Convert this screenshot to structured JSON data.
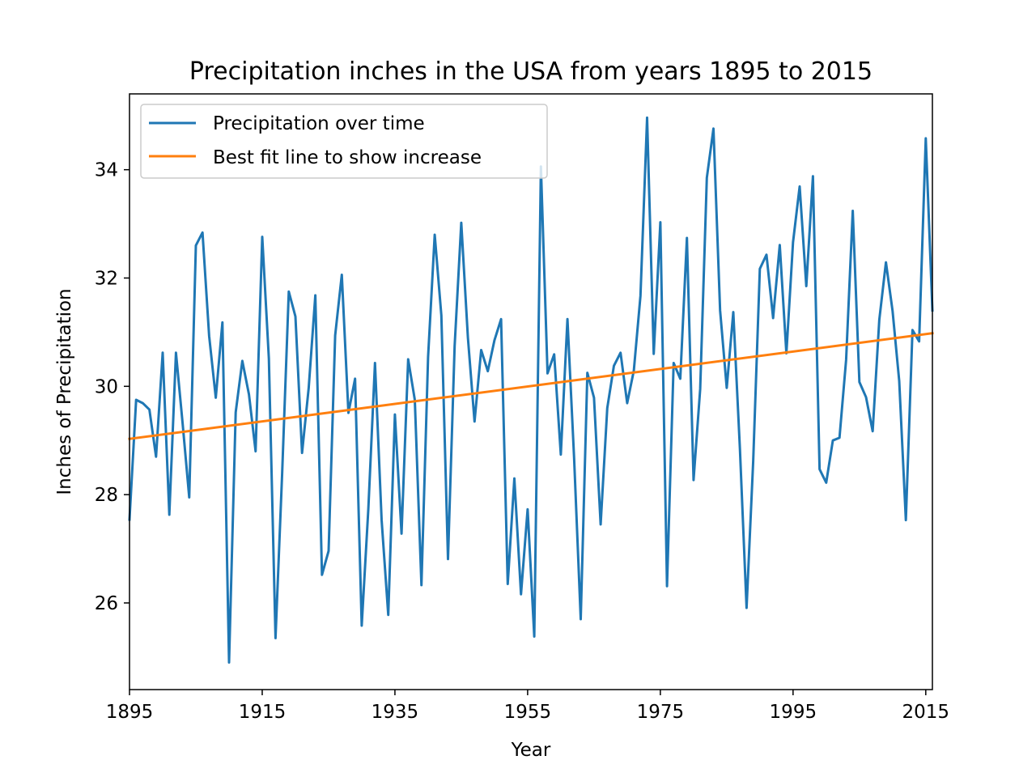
{
  "chart_data": {
    "type": "line",
    "title": "Precipitation inches in the USA from years 1895 to 2015",
    "xlabel": "Year",
    "ylabel": "Inches of Precipitation",
    "xlim": [
      1895,
      2016
    ],
    "ylim": [
      24.4,
      35.4
    ],
    "xticks": [
      "1895",
      "1915",
      "1935",
      "1955",
      "1975",
      "1995",
      "2015"
    ],
    "yticks": [
      "26",
      "28",
      "30",
      "32",
      "34"
    ],
    "grid": false,
    "legend_position": "top-left",
    "series": [
      {
        "name": "Precipitation over time",
        "color": "#1f77b4",
        "x": [
          1895,
          1896,
          1897,
          1898,
          1899,
          1900,
          1901,
          1902,
          1903,
          1904,
          1905,
          1906,
          1907,
          1908,
          1909,
          1910,
          1911,
          1912,
          1913,
          1914,
          1915,
          1916,
          1917,
          1918,
          1919,
          1920,
          1921,
          1922,
          1923,
          1924,
          1925,
          1926,
          1927,
          1928,
          1929,
          1930,
          1931,
          1932,
          1933,
          1934,
          1935,
          1936,
          1937,
          1938,
          1939,
          1940,
          1941,
          1942,
          1943,
          1944,
          1945,
          1946,
          1947,
          1948,
          1949,
          1950,
          1951,
          1952,
          1953,
          1954,
          1955,
          1956,
          1957,
          1958,
          1959,
          1960,
          1961,
          1962,
          1963,
          1964,
          1965,
          1966,
          1967,
          1968,
          1969,
          1970,
          1971,
          1972,
          1973,
          1974,
          1975,
          1976,
          1977,
          1978,
          1979,
          1980,
          1981,
          1982,
          1983,
          1984,
          1985,
          1986,
          1987,
          1988,
          1989,
          1990,
          1991,
          1992,
          1993,
          1994,
          1995,
          1996,
          1997,
          1998,
          1999,
          2000,
          2001,
          2002,
          2003,
          2004,
          2005,
          2006,
          2007,
          2008,
          2009,
          2010,
          2011,
          2012,
          2013,
          2014,
          2015,
          2016
        ],
        "values": [
          27.54,
          29.75,
          29.69,
          29.57,
          28.7,
          30.62,
          27.63,
          30.62,
          29.32,
          27.95,
          32.6,
          32.84,
          30.93,
          29.79,
          31.18,
          24.9,
          29.52,
          30.47,
          29.85,
          28.8,
          32.76,
          30.51,
          25.35,
          28.39,
          31.75,
          31.29,
          28.77,
          29.97,
          31.68,
          26.52,
          26.96,
          30.94,
          32.06,
          29.51,
          30.14,
          25.58,
          27.74,
          30.43,
          27.53,
          25.78,
          29.48,
          27.28,
          30.5,
          29.75,
          26.33,
          30.54,
          32.8,
          31.31,
          26.81,
          30.74,
          33.02,
          30.9,
          29.35,
          30.67,
          30.28,
          30.85,
          31.24,
          26.35,
          28.3,
          26.16,
          27.73,
          25.38,
          34.06,
          30.24,
          30.59,
          28.74,
          31.24,
          28.68,
          25.7,
          30.25,
          29.79,
          27.45,
          29.6,
          30.38,
          30.62,
          29.69,
          30.29,
          31.67,
          34.96,
          30.6,
          33.03,
          26.31,
          30.43,
          30.14,
          32.74,
          28.27,
          29.95,
          33.85,
          34.76,
          31.4,
          29.97,
          31.37,
          28.84,
          25.91,
          28.62,
          32.17,
          32.43,
          31.26,
          32.61,
          30.61,
          32.66,
          33.69,
          31.85,
          33.88,
          28.47,
          28.22,
          29.0,
          29.05,
          30.49,
          33.24,
          30.08,
          29.8,
          29.17,
          31.23,
          32.29,
          31.39,
          30.1,
          27.53,
          31.04,
          30.83,
          34.58,
          31.4
        ]
      },
      {
        "name": "Best fit line to show increase",
        "color": "#ff7f0e",
        "x": [
          1895,
          2016
        ],
        "values": [
          29.03,
          30.98
        ]
      }
    ]
  }
}
